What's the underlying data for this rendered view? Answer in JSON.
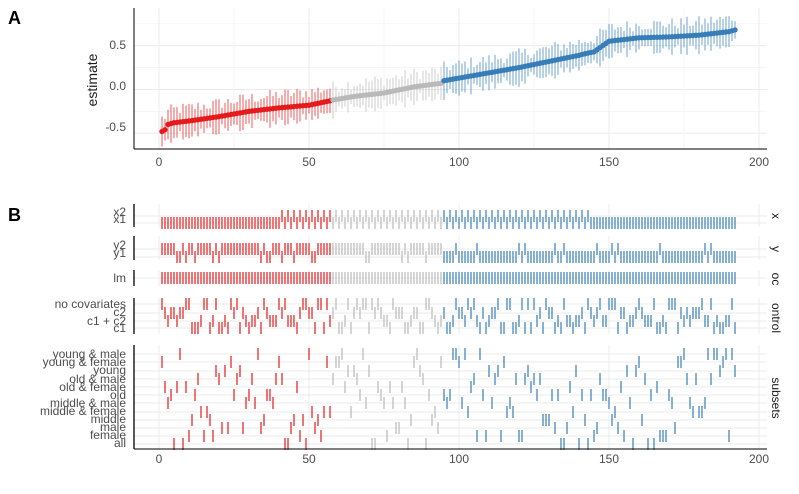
{
  "panels": {
    "a": {
      "tag": "A"
    },
    "b": {
      "tag": "B"
    }
  },
  "colors": {
    "negative": "#e41a1c",
    "neutral": "#b9b9b9",
    "positive": "#377eb8",
    "grid": "#ebebeb",
    "axis": "#000000",
    "text": "#1a1a1a"
  },
  "chart_data": [
    {
      "type": "scatter",
      "panel": "A",
      "ylabel": "estimate",
      "xlabel": "",
      "xlim": [
        -8,
        200
      ],
      "ylim": [
        -0.68,
        0.93
      ],
      "xticks": [
        0,
        50,
        100,
        150,
        200
      ],
      "yticks": [
        -0.5,
        0.0,
        0.5
      ],
      "ytick_labels": [
        "-0.5",
        "0.0",
        "0.5"
      ],
      "grid": true,
      "n_specifications": 192,
      "segments": [
        {
          "color": "negative",
          "from_rank": 1,
          "to_rank": 57
        },
        {
          "color": "neutral",
          "from_rank": 58,
          "to_rank": 94
        },
        {
          "color": "positive",
          "from_rank": 95,
          "to_rank": 192
        }
      ],
      "estimate_profile": {
        "rank": [
          1,
          2,
          3,
          5,
          10,
          20,
          30,
          40,
          50,
          57,
          58,
          65,
          75,
          85,
          94,
          95,
          100,
          110,
          120,
          130,
          140,
          141,
          145,
          150,
          160,
          170,
          180,
          185,
          190,
          192
        ],
        "estimate": [
          -0.48,
          -0.46,
          -0.4,
          -0.38,
          -0.36,
          -0.31,
          -0.25,
          -0.21,
          -0.18,
          -0.13,
          -0.12,
          -0.08,
          -0.04,
          0.03,
          0.07,
          0.1,
          0.13,
          0.19,
          0.25,
          0.32,
          0.39,
          0.4,
          0.43,
          0.55,
          0.59,
          0.6,
          0.62,
          0.64,
          0.66,
          0.68
        ]
      },
      "interval_halfwidth_range": [
        0.08,
        0.22
      ]
    },
    {
      "type": "table",
      "panel": "B",
      "xlim": [
        -8,
        200
      ],
      "xticks": [
        0,
        50,
        100,
        150,
        200
      ],
      "marker": "vertical tick at each specification rank",
      "groups": [
        {
          "name": "x",
          "rows": [
            "x2",
            "x1"
          ],
          "assignment": "x2 for ranks 1-144, x1 for ranks 145-192, interleaved"
        },
        {
          "name": "y",
          "rows": [
            "y2",
            "y1"
          ],
          "assignment": "y2 mostly for ranks below 95, y1 mostly above"
        },
        {
          "name": "model",
          "rows": [
            "lm"
          ],
          "assignment": "all ranks"
        },
        {
          "name": "controls",
          "rows": [
            "no covariates",
            "c2",
            "c1 + c2",
            "c1"
          ],
          "assignment": "four levels spread across all ranks"
        },
        {
          "name": "subsets",
          "rows": [
            "young & male",
            "young & female",
            "young",
            "old & male",
            "old & female",
            "old",
            "middle & male",
            "middle & female",
            "middle",
            "male",
            "female",
            "all"
          ],
          "assignment": "twelve levels spread across all ranks"
        }
      ],
      "facet_labels": [
        "x",
        "y",
        "oc",
        "ontrol",
        "subsets"
      ],
      "xtick_labels": [
        "0",
        "50",
        "100",
        "150",
        "200"
      ]
    }
  ],
  "labels": {
    "a_ylabel": "estimate",
    "a_yticks": [
      "0.5",
      "0.0",
      "-0.5"
    ],
    "a_xticks": [
      "0",
      "50",
      "100",
      "150",
      "200"
    ],
    "b_xticks": [
      "0",
      "50",
      "100",
      "150",
      "200"
    ],
    "b_rows_x": [
      "x2",
      "x1"
    ],
    "b_rows_y": [
      "y2",
      "y1"
    ],
    "b_rows_model": [
      "lm"
    ],
    "b_rows_controls": [
      "no covariates",
      "c2",
      "c1 + c2",
      "c1"
    ],
    "b_rows_subsets": [
      "young & male",
      "young & female",
      "young",
      "old & male",
      "old & female",
      "old",
      "middle & male",
      "middle & female",
      "middle",
      "male",
      "female",
      "all"
    ],
    "facet_x": "x",
    "facet_y": "y",
    "facet_model": "oc",
    "facet_controls": "ontrol",
    "facet_subsets": "subsets"
  }
}
